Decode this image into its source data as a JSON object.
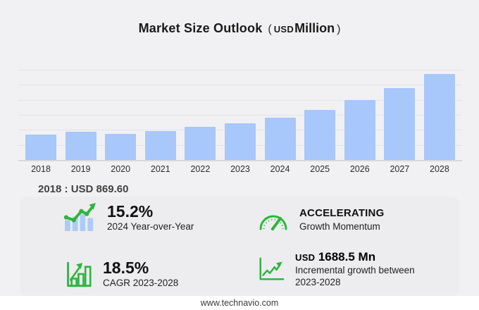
{
  "title": {
    "main": "Market Size Outlook",
    "unit_open": "(",
    "unit_currency": "USD",
    "unit_name": "Million",
    "unit_close": ")"
  },
  "annotation": {
    "base_year_note": "2018 : USD 869.60"
  },
  "chart_data": {
    "type": "bar",
    "title": "Market Size Outlook (USD Million)",
    "unit": "USD Million",
    "categories": [
      "2018",
      "2019",
      "2020",
      "2021",
      "2022",
      "2023",
      "2024",
      "2025",
      "2026",
      "2027",
      "2028"
    ],
    "values": [
      869.6,
      965,
      895,
      990,
      1135,
      1263.6,
      1455.7,
      1710,
      2050,
      2460,
      2952.1
    ],
    "ylim": [
      0,
      3100
    ],
    "gridlines": true,
    "legend": "none",
    "bar_color": "#a8c7fa",
    "xlabel": "",
    "ylabel": ""
  },
  "stats": [
    {
      "icon": "bar-line-growth-icon",
      "value": "15.2%",
      "label": "2024 Year-over-Year"
    },
    {
      "icon": "gauge-icon",
      "value": "ACCELERATING",
      "label": "Growth Momentum"
    },
    {
      "icon": "bar-chart-outline-icon",
      "value": "18.5%",
      "label": "CAGR 2023-2028"
    },
    {
      "icon": "line-growth-icon",
      "value_currency": "USD",
      "value": "1688.5 Mn",
      "label": "Incremental growth between 2023-2028"
    }
  ],
  "footer": {
    "website": "www.technavio.com"
  },
  "colors": {
    "background": "#f1f1f3",
    "panel": "#ededf0",
    "bar": "#a8c7fa",
    "accent_green": "#2eb53c",
    "gridline": "#e3e3e6",
    "baseline": "#d8d8db",
    "footer_bg": "#ffffff"
  }
}
